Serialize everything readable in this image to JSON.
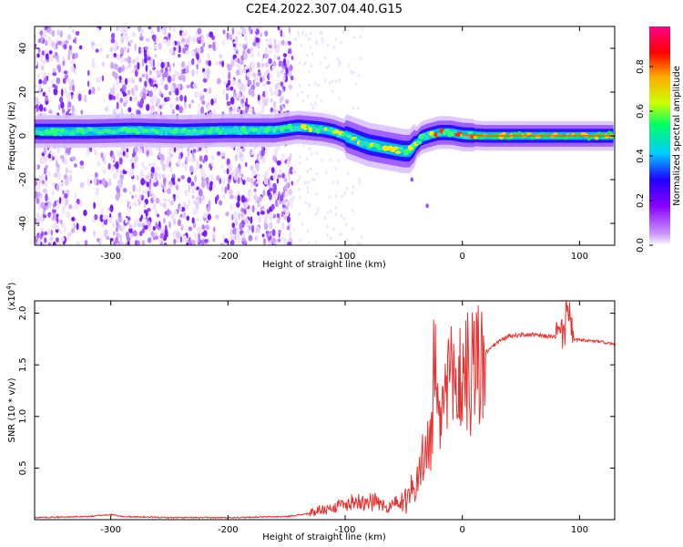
{
  "title": "C2E4.2022.307.04.40.G15",
  "chart_data": [
    {
      "type": "heatmap",
      "xlabel": "Height of straight line (km)",
      "ylabel": "Frequency (Hz)",
      "xlim": [
        -365,
        130
      ],
      "ylim": [
        -50,
        50
      ],
      "xticks": [
        -300,
        -200,
        -100,
        0,
        100
      ],
      "yticks": [
        -40,
        -20,
        0,
        20,
        40
      ],
      "colorbar": {
        "label": "Normalized spectral amplitude",
        "range": [
          0,
          0.98
        ],
        "ticks": [
          "0.0",
          "0.2",
          "0.4",
          "0.6",
          "0.8"
        ],
        "colors": [
          "#ffffff",
          "#cc99ff",
          "#8800ff",
          "#2200ff",
          "#00ccff",
          "#00ff66",
          "#ccff00",
          "#ffaa00",
          "#ff0000",
          "#ff0088"
        ]
      },
      "ridge": {
        "x": [
          -360,
          -320,
          -280,
          -240,
          -200,
          -160,
          -140,
          -120,
          -110,
          -100,
          -90,
          -80,
          -70,
          -60,
          -50,
          -45,
          -40,
          -35,
          -30,
          -20,
          -10,
          0,
          20,
          60,
          100,
          130
        ],
        "y": [
          2,
          2,
          2.5,
          2,
          2.5,
          2.5,
          4,
          3,
          2,
          0,
          -2,
          -4,
          -5,
          -6,
          -7,
          -7,
          -4,
          -1,
          0,
          1.5,
          1.5,
          0.5,
          0,
          0,
          0,
          0
        ]
      },
      "noise_region_x": [
        -365,
        -145
      ]
    },
    {
      "type": "line",
      "xlabel": "Height of straight line (km)",
      "ylabel": "SNR (10 * v/v)",
      "scale_label": "(x10",
      "scale_exp": "4",
      "xlim": [
        -365,
        130
      ],
      "ylim": [
        0,
        2.12
      ],
      "xticks": [
        -300,
        -200,
        -100,
        0,
        100
      ],
      "yticks": [
        "0.5",
        "1.0",
        "1.5",
        "2.0"
      ],
      "color": "#e8312f",
      "series": [
        {
          "x": [
            -365,
            -320,
            -300,
            -290,
            -250,
            -200,
            -150,
            -130,
            -120,
            -110,
            -100,
            -90,
            -80,
            -70,
            -60,
            -50,
            -40,
            -35,
            -30,
            -25,
            -22,
            -20,
            -15,
            -10,
            -5,
            0,
            10,
            20,
            30,
            40,
            50,
            60,
            70,
            80,
            85,
            90,
            95,
            100,
            110,
            120,
            130
          ],
          "y": [
            0.02,
            0.03,
            0.05,
            0.03,
            0.02,
            0.02,
            0.03,
            0.06,
            0.1,
            0.12,
            0.15,
            0.18,
            0.2,
            0.15,
            0.12,
            0.2,
            0.35,
            0.5,
            0.7,
            0.85,
            1.1,
            0.9,
            1.2,
            1.3,
            1.3,
            1.4,
            1.45,
            1.62,
            1.72,
            1.78,
            1.79,
            1.79,
            1.78,
            1.77,
            1.8,
            1.9,
            1.75,
            1.74,
            1.73,
            1.72,
            1.7
          ]
        }
      ]
    }
  ]
}
